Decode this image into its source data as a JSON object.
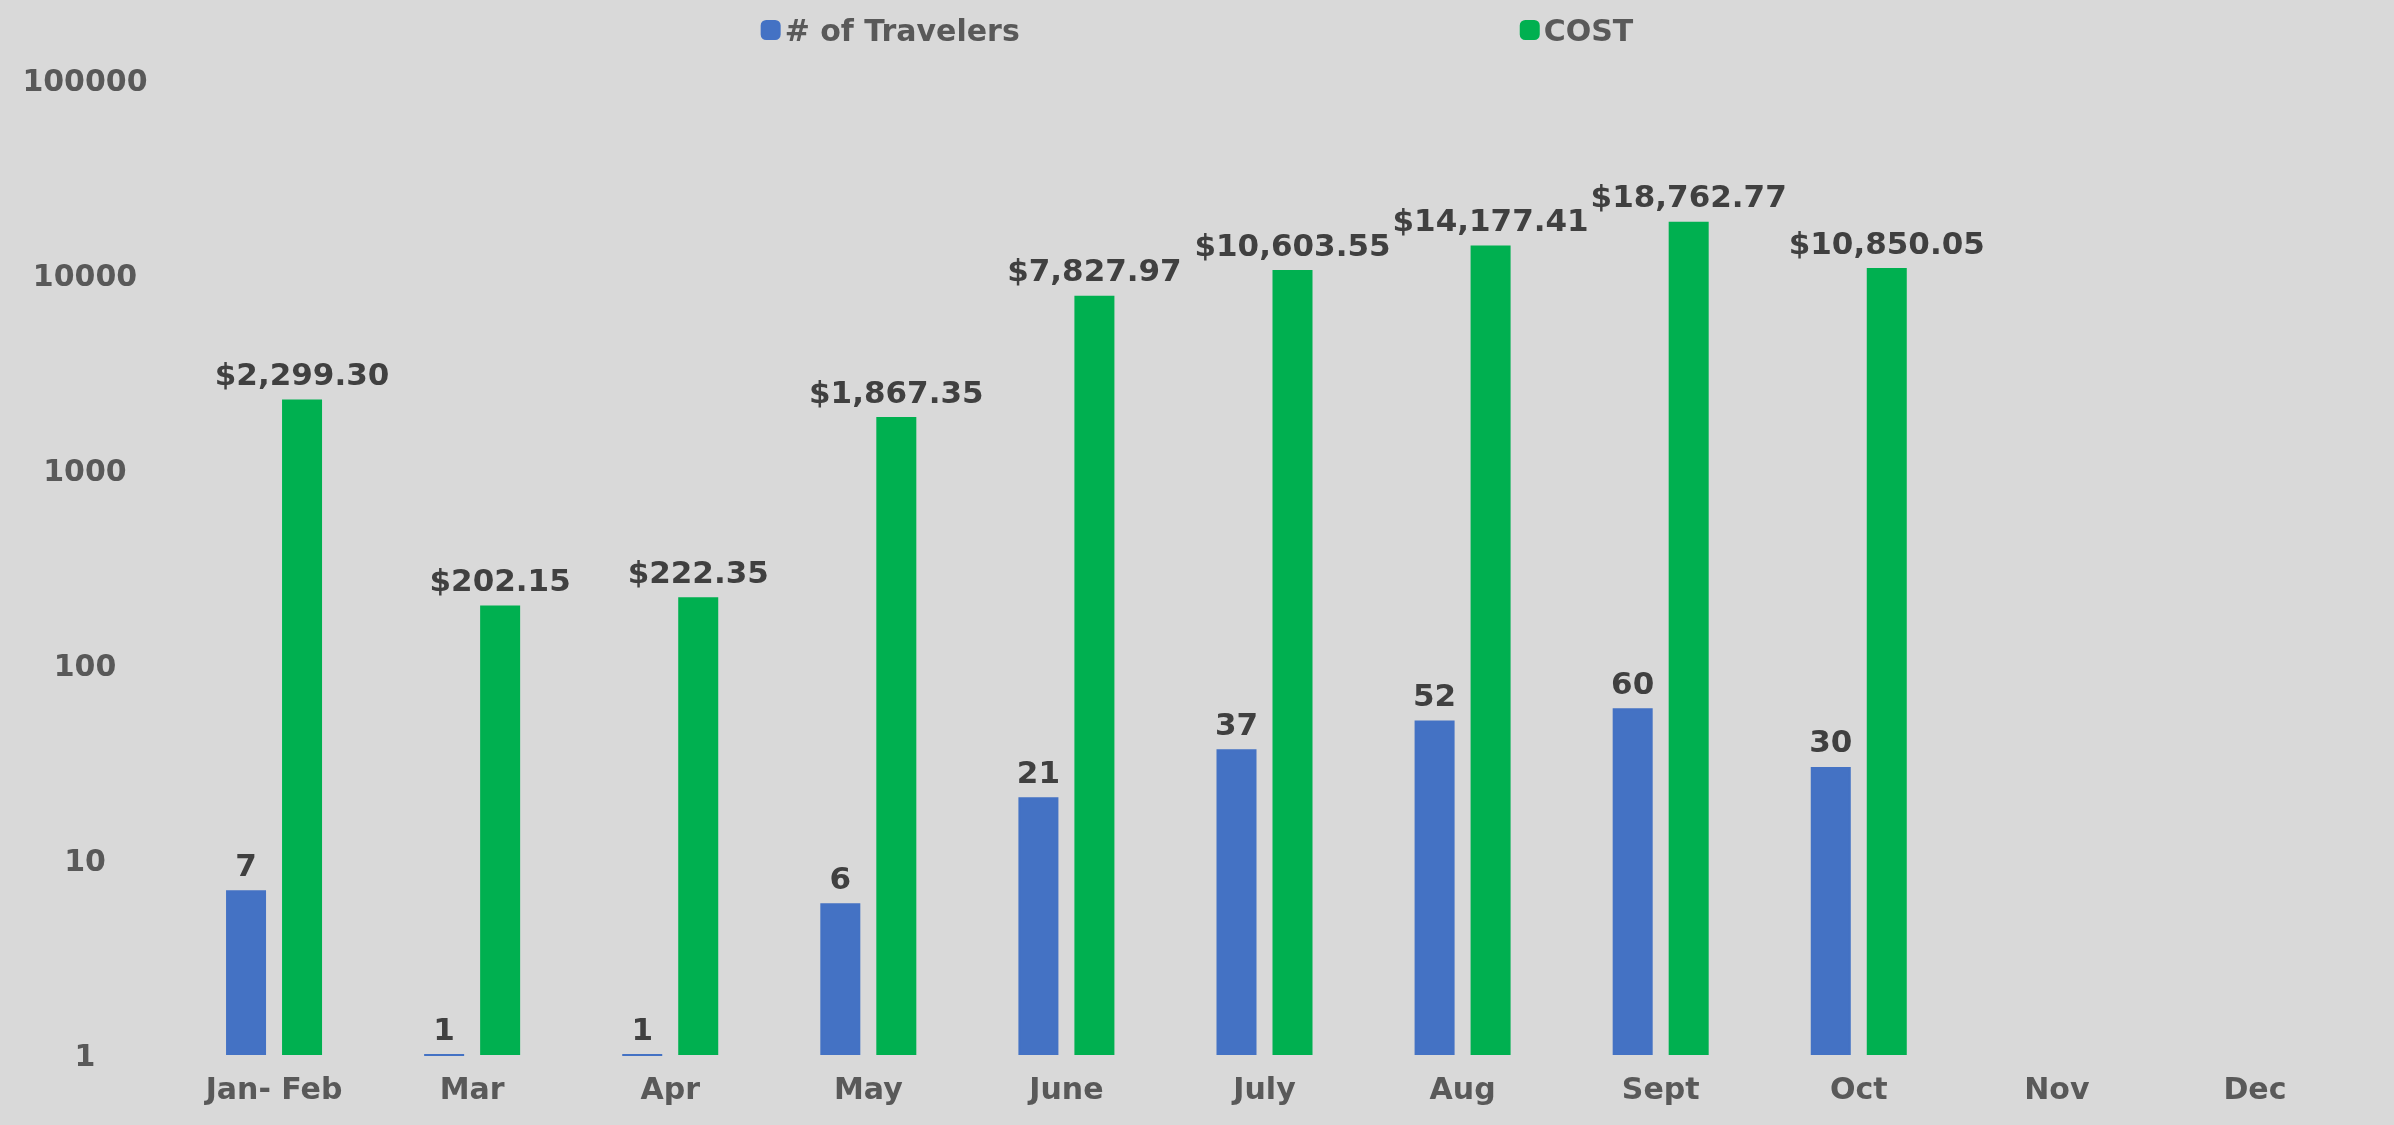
{
  "chart_data": {
    "type": "bar",
    "categories": [
      "Jan- Feb",
      "Mar",
      "Apr",
      "May",
      "June",
      "July",
      "Aug",
      "Sept",
      "Oct",
      "Nov",
      "Dec"
    ],
    "series": [
      {
        "name": "# of Travelers",
        "color": "#4472c4",
        "values": [
          7,
          1,
          1,
          6,
          21,
          37,
          52,
          60,
          30,
          null,
          null
        ],
        "value_labels": [
          "7",
          "1",
          "1",
          "6",
          "21",
          "37",
          "52",
          "60",
          "30",
          null,
          null
        ]
      },
      {
        "name": "COST",
        "color": "#00b050",
        "values": [
          2299.3,
          202.15,
          222.35,
          1867.35,
          7827.97,
          10603.55,
          14177.41,
          18762.77,
          10850.05,
          null,
          null
        ],
        "value_labels": [
          "$2,299.30",
          "$202.15",
          "$222.35",
          "$1,867.35",
          "$7,827.97",
          "$10,603.55",
          "$14,177.41",
          "$18,762.77",
          "$10,850.05",
          null,
          null
        ]
      }
    ],
    "ylim": [
      1,
      100000
    ],
    "yticks": [
      1,
      10,
      100,
      1000,
      10000,
      100000
    ],
    "log": "y",
    "grid": false,
    "legend": "top"
  }
}
